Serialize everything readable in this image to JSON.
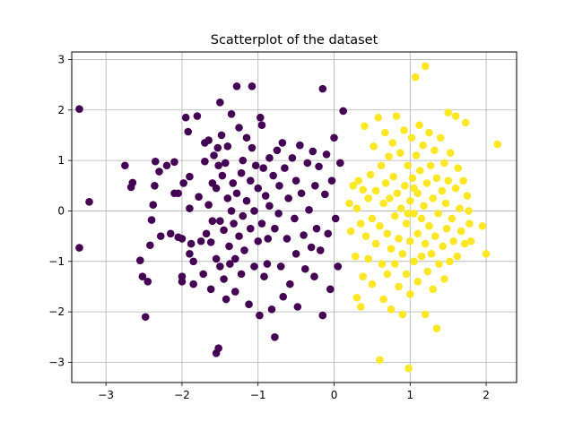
{
  "chart_data": {
    "type": "scatter",
    "title": "Scatterplot of the dataset",
    "xlabel": "",
    "ylabel": "",
    "xlim": [
      -3.45,
      2.4
    ],
    "ylim": [
      -3.4,
      3.15
    ],
    "x_ticks": [
      -3,
      -2,
      -1,
      0,
      1,
      2
    ],
    "y_ticks": [
      -3,
      -2,
      -1,
      0,
      1,
      2,
      3
    ],
    "x_tick_labels": [
      "−3",
      "−2",
      "−1",
      "0",
      "1",
      "2"
    ],
    "y_tick_labels": [
      "−3",
      "−2",
      "−1",
      "0",
      "1",
      "2",
      "3"
    ],
    "grid": true,
    "legend": "none",
    "series": [
      {
        "color": "#440154",
        "points": [
          [
            -3.35,
            2.02
          ],
          [
            -3.22,
            0.18
          ],
          [
            -3.35,
            -0.73
          ],
          [
            -2.75,
            0.9
          ],
          [
            -2.65,
            0.56
          ],
          [
            -2.67,
            0.47
          ],
          [
            -2.55,
            -0.98
          ],
          [
            -2.52,
            -1.3
          ],
          [
            -2.48,
            -2.1
          ],
          [
            -2.45,
            -1.4
          ],
          [
            -2.42,
            -0.68
          ],
          [
            -2.4,
            -0.18
          ],
          [
            -2.38,
            0.12
          ],
          [
            -2.36,
            0.5
          ],
          [
            -2.35,
            0.98
          ],
          [
            -2.3,
            0.78
          ],
          [
            -2.28,
            -0.5
          ],
          [
            -2.2,
            0.9
          ],
          [
            -2.15,
            -0.45
          ],
          [
            -2.1,
            0.97
          ],
          [
            -2.05,
            0.35
          ],
          [
            -2.05,
            -0.52
          ],
          [
            -2.0,
            -1.4
          ],
          [
            -2.0,
            -1.3
          ],
          [
            -1.98,
            0.55
          ],
          [
            -1.95,
            1.85
          ],
          [
            -1.92,
            1.57
          ],
          [
            -1.9,
            0.68
          ],
          [
            -1.9,
            0.05
          ],
          [
            -1.88,
            -0.65
          ],
          [
            -1.85,
            -1.0
          ],
          [
            -1.85,
            -1.45
          ],
          [
            -1.8,
            1.88
          ],
          [
            -1.78,
            0.28
          ],
          [
            -1.75,
            -0.6
          ],
          [
            -1.72,
            -1.25
          ],
          [
            -1.7,
            1.35
          ],
          [
            -1.7,
            0.98
          ],
          [
            -1.68,
            -0.45
          ],
          [
            -1.65,
            1.4
          ],
          [
            -1.65,
            0.12
          ],
          [
            -1.62,
            -0.62
          ],
          [
            -1.62,
            -1.55
          ],
          [
            -1.6,
            0.55
          ],
          [
            -1.6,
            -0.2
          ],
          [
            -1.58,
            1.1
          ],
          [
            -1.55,
            0.45
          ],
          [
            -1.55,
            -0.95
          ],
          [
            -1.53,
            1.25
          ],
          [
            -1.52,
            0.9
          ],
          [
            -1.5,
            2.15
          ],
          [
            -1.5,
            -0.2
          ],
          [
            -1.5,
            -1.1
          ],
          [
            -1.48,
            1.5
          ],
          [
            -1.47,
            0.7
          ],
          [
            -1.45,
            -0.38
          ],
          [
            -1.45,
            -1.35
          ],
          [
            -1.43,
            0.95
          ],
          [
            -1.42,
            -1.75
          ],
          [
            -1.4,
            1.28
          ],
          [
            -1.4,
            0.25
          ],
          [
            -1.38,
            -0.7
          ],
          [
            -1.37,
            -1.05
          ],
          [
            -1.35,
            1.92
          ],
          [
            -1.35,
            0.0
          ],
          [
            -1.33,
            0.55
          ],
          [
            -1.32,
            -0.25
          ],
          [
            -1.3,
            -1.6
          ],
          [
            -1.3,
            -0.95
          ],
          [
            -1.28,
            2.47
          ],
          [
            -1.28,
            0.35
          ],
          [
            -1.25,
            1.65
          ],
          [
            -1.25,
            -0.5
          ],
          [
            -1.22,
            0.75
          ],
          [
            -1.22,
            -1.25
          ],
          [
            -1.2,
            1.0
          ],
          [
            -1.2,
            -0.1
          ],
          [
            -1.18,
            -0.78
          ],
          [
            -1.15,
            1.45
          ],
          [
            -1.15,
            0.2
          ],
          [
            -1.12,
            -1.85
          ],
          [
            -1.1,
            0.6
          ],
          [
            -1.1,
            -0.35
          ],
          [
            -1.08,
            2.47
          ],
          [
            -1.08,
            1.25
          ],
          [
            -1.05,
            -1.1
          ],
          [
            -1.05,
            0.0
          ],
          [
            -1.03,
            0.9
          ],
          [
            -1.0,
            0.45
          ],
          [
            -1.0,
            -0.6
          ],
          [
            -0.98,
            -2.07
          ],
          [
            -0.97,
            1.85
          ],
          [
            -0.95,
            1.7
          ],
          [
            -0.95,
            -0.25
          ],
          [
            -0.93,
            0.85
          ],
          [
            -0.92,
            -1.3
          ],
          [
            -0.9,
            0.3
          ],
          [
            -0.88,
            -1.05
          ],
          [
            -0.87,
            -0.55
          ],
          [
            -0.85,
            1.05
          ],
          [
            -0.85,
            0.1
          ],
          [
            -0.82,
            -1.95
          ],
          [
            -0.8,
            0.7
          ],
          [
            -0.78,
            -0.35
          ],
          [
            -0.78,
            -2.5
          ],
          [
            -0.75,
            1.2
          ],
          [
            -0.73,
            -0.05
          ],
          [
            -0.72,
            0.5
          ],
          [
            -0.7,
            -1.1
          ],
          [
            -0.68,
            1.35
          ],
          [
            -0.67,
            -1.7
          ],
          [
            -0.65,
            0.85
          ],
          [
            -0.62,
            -0.55
          ],
          [
            -0.6,
            0.25
          ],
          [
            -0.58,
            -1.45
          ],
          [
            -0.55,
            1.05
          ],
          [
            -0.52,
            -0.15
          ],
          [
            -0.5,
            0.6
          ],
          [
            -0.5,
            -0.85
          ],
          [
            -0.48,
            -1.9
          ],
          [
            -0.45,
            1.3
          ],
          [
            -0.43,
            0.35
          ],
          [
            -0.4,
            -0.48
          ],
          [
            -0.38,
            -1.15
          ],
          [
            -0.35,
            0.95
          ],
          [
            -0.33,
            0.02
          ],
          [
            -0.3,
            -0.72
          ],
          [
            -0.28,
            1.18
          ],
          [
            -0.26,
            -1.3
          ],
          [
            -0.25,
            0.5
          ],
          [
            -0.23,
            -0.35
          ],
          [
            -0.2,
            0.88
          ],
          [
            -0.18,
            -0.78
          ],
          [
            -0.15,
            2.42
          ],
          [
            -0.15,
            -2.07
          ],
          [
            -0.12,
            0.33
          ],
          [
            -0.1,
            1.12
          ],
          [
            -0.08,
            -0.45
          ],
          [
            -0.05,
            -1.55
          ],
          [
            -0.03,
            0.6
          ],
          [
            0.0,
            1.45
          ],
          [
            0.02,
            -0.15
          ],
          [
            0.05,
            -1.1
          ],
          [
            0.08,
            0.95
          ],
          [
            0.12,
            1.98
          ],
          [
            -1.55,
            -2.82
          ],
          [
            -1.52,
            -2.72
          ],
          [
            -2.0,
            -0.55
          ],
          [
            -1.9,
            -0.85
          ],
          [
            -2.1,
            0.35
          ]
        ]
      },
      {
        "color": "#fde725",
        "points": [
          [
            0.2,
            0.15
          ],
          [
            0.22,
            -0.4
          ],
          [
            0.25,
            0.5
          ],
          [
            0.28,
            -0.9
          ],
          [
            0.3,
            0.05
          ],
          [
            0.3,
            -1.72
          ],
          [
            0.32,
            0.6
          ],
          [
            0.35,
            -0.25
          ],
          [
            0.35,
            -1.9
          ],
          [
            0.38,
            0.42
          ],
          [
            0.38,
            -1.3
          ],
          [
            0.4,
            1.68
          ],
          [
            0.42,
            -0.5
          ],
          [
            0.45,
            0.25
          ],
          [
            0.45,
            -0.95
          ],
          [
            0.48,
            0.72
          ],
          [
            0.5,
            -0.15
          ],
          [
            0.5,
            -1.45
          ],
          [
            0.52,
            1.28
          ],
          [
            0.55,
            0.4
          ],
          [
            0.55,
            -0.65
          ],
          [
            0.58,
            1.85
          ],
          [
            0.6,
            -0.3
          ],
          [
            0.6,
            -2.95
          ],
          [
            0.62,
            0.9
          ],
          [
            0.63,
            -1.05
          ],
          [
            0.65,
            0.15
          ],
          [
            0.65,
            -1.75
          ],
          [
            0.67,
            1.55
          ],
          [
            0.68,
            0.55
          ],
          [
            0.7,
            -0.45
          ],
          [
            0.7,
            -1.25
          ],
          [
            0.72,
            1.08
          ],
          [
            0.73,
            0.25
          ],
          [
            0.75,
            -0.75
          ],
          [
            0.75,
            -1.95
          ],
          [
            0.77,
            1.35
          ],
          [
            0.78,
            0.68
          ],
          [
            0.8,
            -0.1
          ],
          [
            0.8,
            -1.05
          ],
          [
            0.82,
            1.88
          ],
          [
            0.83,
            0.35
          ],
          [
            0.85,
            -0.55
          ],
          [
            0.85,
            -1.5
          ],
          [
            0.87,
            1.15
          ],
          [
            0.88,
            0.05
          ],
          [
            0.9,
            -0.85
          ],
          [
            0.9,
            -2.05
          ],
          [
            0.92,
            1.6
          ],
          [
            0.93,
            0.5
          ],
          [
            0.95,
            -0.25
          ],
          [
            0.95,
            -1.25
          ],
          [
            0.97,
            0.9
          ],
          [
            0.98,
            -3.12
          ],
          [
            1.0,
            0.2
          ],
          [
            1.0,
            -0.6
          ],
          [
            1.0,
            -1.65
          ],
          [
            1.02,
            1.45
          ],
          [
            1.03,
            0.65
          ],
          [
            1.05,
            -0.05
          ],
          [
            1.05,
            -1.0
          ],
          [
            1.07,
            2.65
          ],
          [
            1.08,
            1.1
          ],
          [
            1.1,
            0.35
          ],
          [
            1.1,
            -0.45
          ],
          [
            1.1,
            -1.4
          ],
          [
            1.12,
            1.7
          ],
          [
            1.13,
            0.8
          ],
          [
            1.15,
            -0.15
          ],
          [
            1.15,
            -0.9
          ],
          [
            1.17,
            1.3
          ],
          [
            1.18,
            0.1
          ],
          [
            1.2,
            2.87
          ],
          [
            1.2,
            -0.65
          ],
          [
            1.2,
            -2.05
          ],
          [
            1.22,
            0.55
          ],
          [
            1.23,
            -1.2
          ],
          [
            1.25,
            1.55
          ],
          [
            1.25,
            -0.3
          ],
          [
            1.27,
            0.9
          ],
          [
            1.28,
            -0.85
          ],
          [
            1.3,
            0.25
          ],
          [
            1.3,
            -1.55
          ],
          [
            1.32,
            1.2
          ],
          [
            1.33,
            -0.5
          ],
          [
            1.35,
            0.65
          ],
          [
            1.35,
            -2.33
          ],
          [
            1.37,
            -0.05
          ],
          [
            1.38,
            -1.05
          ],
          [
            1.4,
            1.45
          ],
          [
            1.42,
            0.4
          ],
          [
            1.43,
            -0.7
          ],
          [
            1.45,
            0.95
          ],
          [
            1.45,
            -1.35
          ],
          [
            1.47,
            0.15
          ],
          [
            1.48,
            -0.35
          ],
          [
            1.5,
            1.95
          ],
          [
            1.5,
            0.6
          ],
          [
            1.52,
            -1.0
          ],
          [
            1.53,
            1.15
          ],
          [
            1.55,
            -0.15
          ],
          [
            1.57,
            -0.6
          ],
          [
            1.6,
            1.88
          ],
          [
            1.6,
            0.45
          ],
          [
            1.62,
            -0.9
          ],
          [
            1.63,
            0.85
          ],
          [
            1.65,
            0.05
          ],
          [
            1.67,
            -0.4
          ],
          [
            1.7,
            0.6
          ],
          [
            1.72,
            -0.65
          ],
          [
            1.73,
            1.75
          ],
          [
            1.75,
            0.3
          ],
          [
            1.77,
            0.0
          ],
          [
            1.78,
            -0.25
          ],
          [
            1.8,
            -0.6
          ],
          [
            1.95,
            -0.3
          ],
          [
            2.0,
            -0.85
          ],
          [
            2.15,
            1.32
          ],
          [
            0.97,
            -0.05
          ],
          [
            1.05,
            0.45
          ]
        ]
      }
    ]
  }
}
